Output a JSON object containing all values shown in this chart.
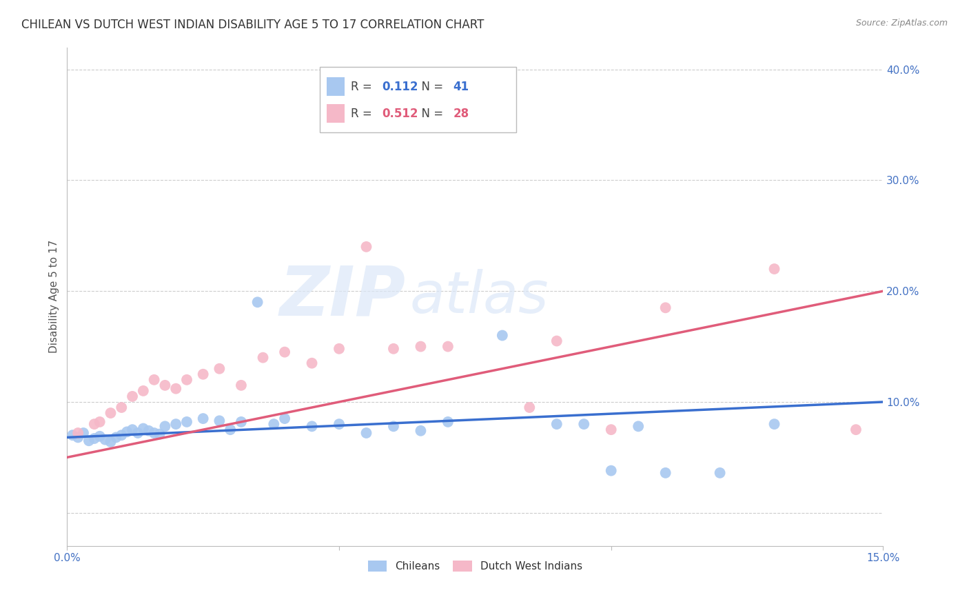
{
  "title": "CHILEAN VS DUTCH WEST INDIAN DISABILITY AGE 5 TO 17 CORRELATION CHART",
  "source": "Source: ZipAtlas.com",
  "ylabel": "Disability Age 5 to 17",
  "xmin": 0.0,
  "xmax": 0.15,
  "ymin": -0.03,
  "ymax": 0.42,
  "yticks": [
    0.0,
    0.1,
    0.2,
    0.3,
    0.4
  ],
  "ytick_labels": [
    "",
    "10.0%",
    "20.0%",
    "30.0%",
    "40.0%"
  ],
  "background_color": "#ffffff",
  "chilean_color": "#a8c8f0",
  "dutch_color": "#f5b8c8",
  "chilean_line_color": "#3a6fcf",
  "dutch_line_color": "#e05c7a",
  "R_chilean": 0.112,
  "N_chilean": 41,
  "R_dutch": 0.512,
  "N_dutch": 28,
  "chilean_x": [
    0.001,
    0.002,
    0.003,
    0.004,
    0.005,
    0.006,
    0.007,
    0.008,
    0.009,
    0.01,
    0.011,
    0.012,
    0.013,
    0.014,
    0.015,
    0.016,
    0.017,
    0.018,
    0.02,
    0.022,
    0.025,
    0.028,
    0.03,
    0.032,
    0.035,
    0.038,
    0.04,
    0.045,
    0.05,
    0.055,
    0.06,
    0.065,
    0.07,
    0.08,
    0.09,
    0.095,
    0.1,
    0.105,
    0.11,
    0.12,
    0.13
  ],
  "chilean_y": [
    0.07,
    0.068,
    0.072,
    0.065,
    0.067,
    0.069,
    0.066,
    0.064,
    0.068,
    0.07,
    0.073,
    0.075,
    0.072,
    0.076,
    0.074,
    0.072,
    0.071,
    0.078,
    0.08,
    0.082,
    0.085,
    0.083,
    0.075,
    0.082,
    0.19,
    0.08,
    0.085,
    0.078,
    0.08,
    0.072,
    0.078,
    0.074,
    0.082,
    0.16,
    0.08,
    0.08,
    0.038,
    0.078,
    0.036,
    0.036,
    0.08
  ],
  "dutch_x": [
    0.002,
    0.005,
    0.006,
    0.008,
    0.01,
    0.012,
    0.014,
    0.016,
    0.018,
    0.02,
    0.022,
    0.025,
    0.028,
    0.032,
    0.036,
    0.04,
    0.045,
    0.05,
    0.055,
    0.06,
    0.065,
    0.07,
    0.085,
    0.09,
    0.1,
    0.11,
    0.13,
    0.145
  ],
  "dutch_y": [
    0.072,
    0.08,
    0.082,
    0.09,
    0.095,
    0.105,
    0.11,
    0.12,
    0.115,
    0.112,
    0.12,
    0.125,
    0.13,
    0.115,
    0.14,
    0.145,
    0.135,
    0.148,
    0.24,
    0.148,
    0.15,
    0.15,
    0.095,
    0.155,
    0.075,
    0.185,
    0.22,
    0.075
  ],
  "grid_color": "#cccccc",
  "title_fontsize": 12,
  "label_fontsize": 11,
  "tick_fontsize": 11,
  "axis_color": "#4472c4",
  "legend_fontsize": 12
}
